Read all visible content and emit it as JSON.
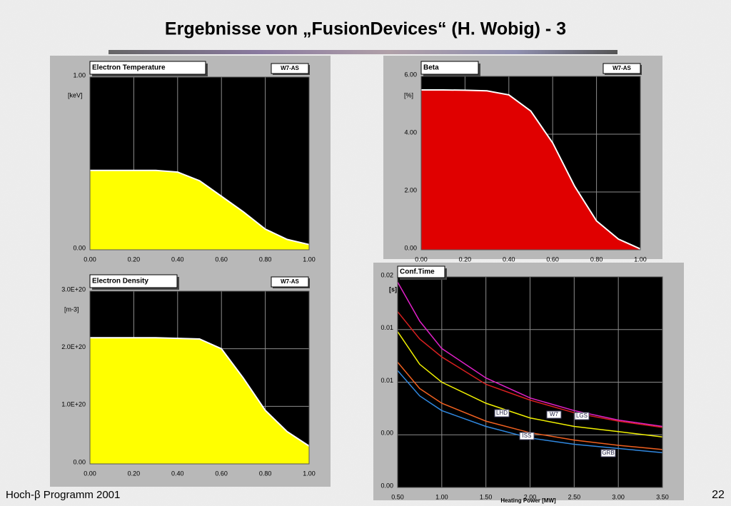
{
  "title": "Ergebnisse von „FusionDevices“ (H. Wobig) - 3",
  "footer": "Hoch-β Programm 2001",
  "page_number": "22",
  "chart_data": [
    {
      "type": "area",
      "title": "Electron Temperature",
      "tag": "W7-AS",
      "y_unit": "[keV]",
      "color": "#ffff00",
      "x": [
        0,
        0.1,
        0.2,
        0.3,
        0.4,
        0.5,
        0.6,
        0.7,
        0.8,
        0.9,
        1.0
      ],
      "values": [
        0.46,
        0.46,
        0.46,
        0.46,
        0.45,
        0.4,
        0.31,
        0.22,
        0.12,
        0.06,
        0.03
      ],
      "xlim": [
        0,
        1
      ],
      "ylim": [
        0,
        1
      ],
      "xticks": [
        {
          "value": 0,
          "label": "0.00"
        },
        {
          "value": 0.2,
          "label": "0.20"
        },
        {
          "value": 0.4,
          "label": "0.40"
        },
        {
          "value": 0.6,
          "label": "0.60"
        },
        {
          "value": 0.8,
          "label": "0.80"
        },
        {
          "value": 1,
          "label": "1.00"
        }
      ],
      "yticks": [
        {
          "value": 0,
          "label": "0.00"
        },
        {
          "value": 1,
          "label": "1.00"
        }
      ]
    },
    {
      "type": "area",
      "title": "Beta",
      "tag": "W7-AS",
      "y_unit": "[%]",
      "color": "#e00000",
      "x": [
        0,
        0.1,
        0.2,
        0.3,
        0.4,
        0.5,
        0.6,
        0.7,
        0.8,
        0.9,
        1.0
      ],
      "values": [
        5.53,
        5.53,
        5.52,
        5.5,
        5.36,
        4.8,
        3.7,
        2.2,
        1.0,
        0.37,
        0.03
      ],
      "xlim": [
        0,
        1
      ],
      "ylim": [
        0,
        6
      ],
      "xticks": [
        {
          "value": 0,
          "label": "0.00"
        },
        {
          "value": 0.2,
          "label": "0.20"
        },
        {
          "value": 0.4,
          "label": "0.40"
        },
        {
          "value": 0.6,
          "label": "0.60"
        },
        {
          "value": 0.8,
          "label": "0.80"
        },
        {
          "value": 1,
          "label": "1.00"
        }
      ],
      "yticks": [
        {
          "value": 0,
          "label": "0.00"
        },
        {
          "value": 2,
          "label": "2.00"
        },
        {
          "value": 4,
          "label": "4.00"
        },
        {
          "value": 6,
          "label": "6.00"
        }
      ]
    },
    {
      "type": "area",
      "title": "Electron Density",
      "tag": "W7-AS",
      "y_unit": "[m-3]",
      "color": "#ffff00",
      "x": [
        0,
        0.1,
        0.2,
        0.3,
        0.4,
        0.5,
        0.6,
        0.7,
        0.8,
        0.9,
        1.0
      ],
      "values": [
        2.19e+20,
        2.19e+20,
        2.19e+20,
        2.19e+20,
        2.18e+20,
        2.17e+20,
        2e+20,
        1.49e+20,
        9.3e+19,
        5.6e+19,
        3.1e+19
      ],
      "xlim": [
        0,
        1
      ],
      "ylim": [
        0,
        3e+20
      ],
      "xticks": [
        {
          "value": 0,
          "label": "0.00"
        },
        {
          "value": 0.2,
          "label": "0.20"
        },
        {
          "value": 0.4,
          "label": "0.40"
        },
        {
          "value": 0.6,
          "label": "0.60"
        },
        {
          "value": 0.8,
          "label": "0.80"
        },
        {
          "value": 1,
          "label": "1.00"
        }
      ],
      "yticks": [
        {
          "value": 0,
          "label": "0.00"
        },
        {
          "value": 1e+20,
          "label": "1.0E+20"
        },
        {
          "value": 2e+20,
          "label": "2.0E+20"
        },
        {
          "value": 3e+20,
          "label": "3.0E+20"
        }
      ]
    },
    {
      "type": "line",
      "title": "Conf.Time",
      "y_unit": "[s]",
      "x_label": "Heating Power [MW]",
      "x": [
        0.5,
        0.75,
        1.0,
        1.5,
        2.0,
        2.5,
        3.0,
        3.5
      ],
      "series": [
        {
          "name": "LGS",
          "color": "#e020c8",
          "values": [
            0.0195,
            0.0158,
            0.0132,
            0.0104,
            0.0085,
            0.0073,
            0.0064,
            0.0058
          ]
        },
        {
          "name": "W7",
          "color": "#d82020",
          "values": [
            0.0167,
            0.0141,
            0.0124,
            0.0098,
            0.0083,
            0.0071,
            0.0063,
            0.0057
          ]
        },
        {
          "name": "LHD",
          "color": "#f0f000",
          "values": [
            0.0148,
            0.0117,
            0.01,
            0.008,
            0.0066,
            0.0058,
            0.0053,
            0.0048
          ]
        },
        {
          "name": "ISS",
          "color": "#f06020",
          "values": [
            0.0119,
            0.0094,
            0.008,
            0.0063,
            0.0052,
            0.0045,
            0.004,
            0.0036
          ]
        },
        {
          "name": "GRB",
          "color": "#3088e0",
          "values": [
            0.0111,
            0.0087,
            0.0073,
            0.0058,
            0.0047,
            0.0041,
            0.0037,
            0.0033
          ]
        }
      ],
      "xlim": [
        0.5,
        3.5
      ],
      "ylim": [
        0,
        0.02
      ],
      "xticks": [
        {
          "value": 0.5,
          "label": "0.50"
        },
        {
          "value": 1.0,
          "label": "1.00"
        },
        {
          "value": 1.5,
          "label": "1.50"
        },
        {
          "value": 2.0,
          "label": "2.00"
        },
        {
          "value": 2.5,
          "label": "2.50"
        },
        {
          "value": 3.0,
          "label": "3.00"
        },
        {
          "value": 3.5,
          "label": "3.50"
        }
      ],
      "yticks": [
        {
          "value": 0,
          "label": "0.00"
        },
        {
          "value": 0.005,
          "label": "0.00"
        },
        {
          "value": 0.01,
          "label": "0.01"
        },
        {
          "value": 0.015,
          "label": "0.01"
        },
        {
          "value": 0.02,
          "label": "0.02"
        }
      ]
    }
  ]
}
